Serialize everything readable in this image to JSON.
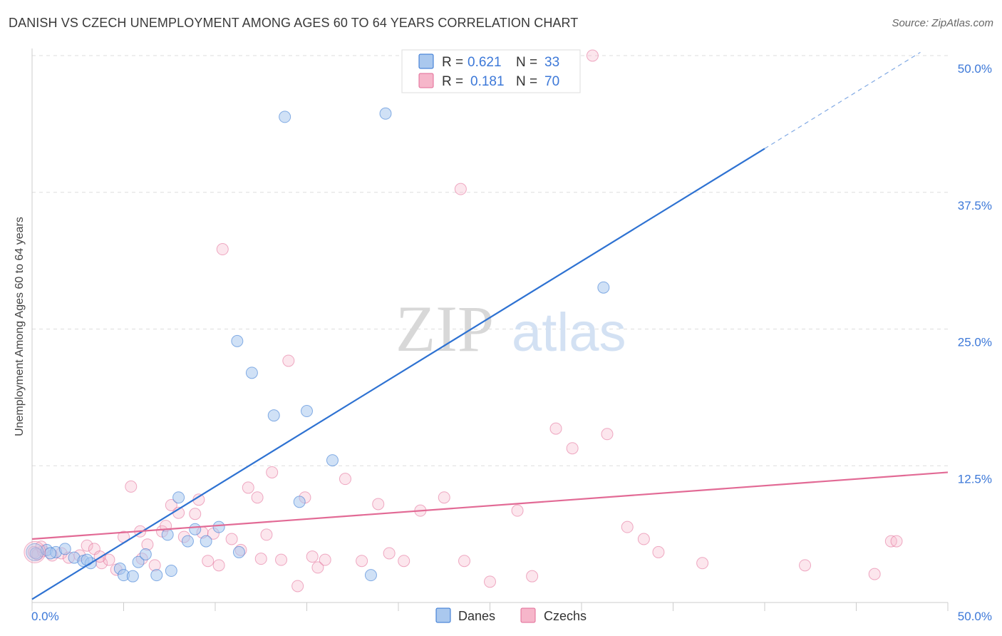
{
  "chart_data": {
    "type": "scatter",
    "title": "DANISH VS CZECH UNEMPLOYMENT AMONG AGES 60 TO 64 YEARS CORRELATION CHART",
    "source": "Source: ZipAtlas.com",
    "ylabel": "Unemployment Among Ages 60 to 64 years",
    "xlim": [
      0,
      50
    ],
    "ylim": [
      0,
      50
    ],
    "x_tick_labels": [
      "0.0%",
      "50.0%"
    ],
    "y_tick_values": [
      12.5,
      25.0,
      37.5,
      50.0
    ],
    "y_tick_labels": [
      "12.5%",
      "25.0%",
      "37.5%",
      "50.0%"
    ],
    "watermark": {
      "zip": "ZIP",
      "atlas": "atlas"
    },
    "colors": {
      "danes": "#aac8ee",
      "danes_line": "#2e72d2",
      "czechs": "#f6b6ca",
      "czechs_line": "#e26a95",
      "value_text": "#3c78d8",
      "grid": "#dddddd"
    },
    "legend": [
      {
        "r_label": "R =",
        "r_value": "0.621",
        "n_label": "N =",
        "n_value": "33"
      },
      {
        "r_label": "R =",
        "r_value": "0.181",
        "n_label": "N =",
        "n_value": "70"
      }
    ],
    "series": [
      {
        "name": "Danes",
        "trend": {
          "x0": 0,
          "y0": 0.3,
          "x1": 40,
          "y1": 41.5,
          "dash_x1": 48.5,
          "dash_y1": 50.3
        },
        "points": [
          [
            0.2,
            4.5
          ],
          [
            0.8,
            4.8
          ],
          [
            1.3,
            4.6
          ],
          [
            1.8,
            4.9
          ],
          [
            2.3,
            4.1
          ],
          [
            2.8,
            3.8
          ],
          [
            3.2,
            3.6
          ],
          [
            4.8,
            3.1
          ],
          [
            5.0,
            2.5
          ],
          [
            5.5,
            2.4
          ],
          [
            5.8,
            3.7
          ],
          [
            6.2,
            4.4
          ],
          [
            6.8,
            2.5
          ],
          [
            7.4,
            6.2
          ],
          [
            7.6,
            2.9
          ],
          [
            8.0,
            9.6
          ],
          [
            8.5,
            5.6
          ],
          [
            8.9,
            6.7
          ],
          [
            9.5,
            5.6
          ],
          [
            10.2,
            6.9
          ],
          [
            11.3,
            4.6
          ],
          [
            11.2,
            23.9
          ],
          [
            12.0,
            21.0
          ],
          [
            13.2,
            17.1
          ],
          [
            14.6,
            9.2
          ],
          [
            15.0,
            17.5
          ],
          [
            16.4,
            13.0
          ],
          [
            18.5,
            2.5
          ],
          [
            13.8,
            44.4
          ],
          [
            19.3,
            44.7
          ],
          [
            31.2,
            28.8
          ],
          [
            3.0,
            3.9
          ],
          [
            1.0,
            4.5
          ]
        ]
      },
      {
        "name": "Czechs",
        "trend": {
          "x0": 0,
          "y0": 5.8,
          "x1": 50,
          "y1": 11.9
        },
        "points": [
          [
            0.1,
            4.6
          ],
          [
            0.3,
            4.4
          ],
          [
            0.6,
            4.7
          ],
          [
            1.1,
            4.3
          ],
          [
            1.6,
            4.5
          ],
          [
            2.0,
            4.1
          ],
          [
            2.6,
            4.3
          ],
          [
            3.0,
            5.2
          ],
          [
            3.4,
            4.9
          ],
          [
            3.8,
            3.6
          ],
          [
            4.2,
            3.9
          ],
          [
            4.6,
            3.0
          ],
          [
            5.0,
            6.0
          ],
          [
            5.4,
            10.6
          ],
          [
            5.9,
            6.5
          ],
          [
            6.3,
            5.3
          ],
          [
            6.7,
            3.4
          ],
          [
            7.1,
            6.5
          ],
          [
            7.3,
            7.0
          ],
          [
            7.6,
            8.9
          ],
          [
            8.0,
            8.2
          ],
          [
            8.3,
            6.0
          ],
          [
            8.9,
            8.1
          ],
          [
            9.3,
            6.4
          ],
          [
            9.6,
            3.8
          ],
          [
            9.9,
            6.3
          ],
          [
            10.2,
            3.4
          ],
          [
            10.4,
            32.3
          ],
          [
            10.9,
            5.8
          ],
          [
            11.4,
            4.8
          ],
          [
            11.8,
            10.5
          ],
          [
            12.3,
            9.6
          ],
          [
            12.5,
            4.0
          ],
          [
            13.1,
            11.9
          ],
          [
            13.6,
            3.9
          ],
          [
            14.0,
            22.1
          ],
          [
            14.5,
            1.5
          ],
          [
            14.9,
            9.6
          ],
          [
            15.3,
            4.2
          ],
          [
            15.6,
            3.2
          ],
          [
            16.0,
            3.9
          ],
          [
            17.1,
            11.3
          ],
          [
            18.0,
            3.8
          ],
          [
            18.9,
            9.0
          ],
          [
            19.5,
            4.5
          ],
          [
            20.3,
            3.8
          ],
          [
            21.2,
            8.4
          ],
          [
            22.5,
            9.6
          ],
          [
            23.4,
            37.8
          ],
          [
            23.6,
            3.8
          ],
          [
            25.0,
            1.9
          ],
          [
            27.3,
            2.4
          ],
          [
            28.6,
            15.9
          ],
          [
            29.5,
            14.1
          ],
          [
            30.6,
            50.0
          ],
          [
            31.4,
            15.4
          ],
          [
            32.5,
            6.9
          ],
          [
            33.4,
            5.8
          ],
          [
            34.2,
            4.6
          ],
          [
            36.6,
            3.6
          ],
          [
            42.2,
            3.4
          ],
          [
            46.0,
            2.6
          ],
          [
            46.9,
            5.6
          ],
          [
            47.2,
            5.6
          ],
          [
            3.7,
            4.2
          ],
          [
            6.0,
            4.0
          ],
          [
            12.8,
            6.2
          ],
          [
            9.1,
            9.4
          ],
          [
            26.5,
            8.4
          ],
          [
            0.5,
            5.1
          ]
        ]
      }
    ],
    "bottom_legend": [
      "Danes",
      "Czechs"
    ]
  }
}
